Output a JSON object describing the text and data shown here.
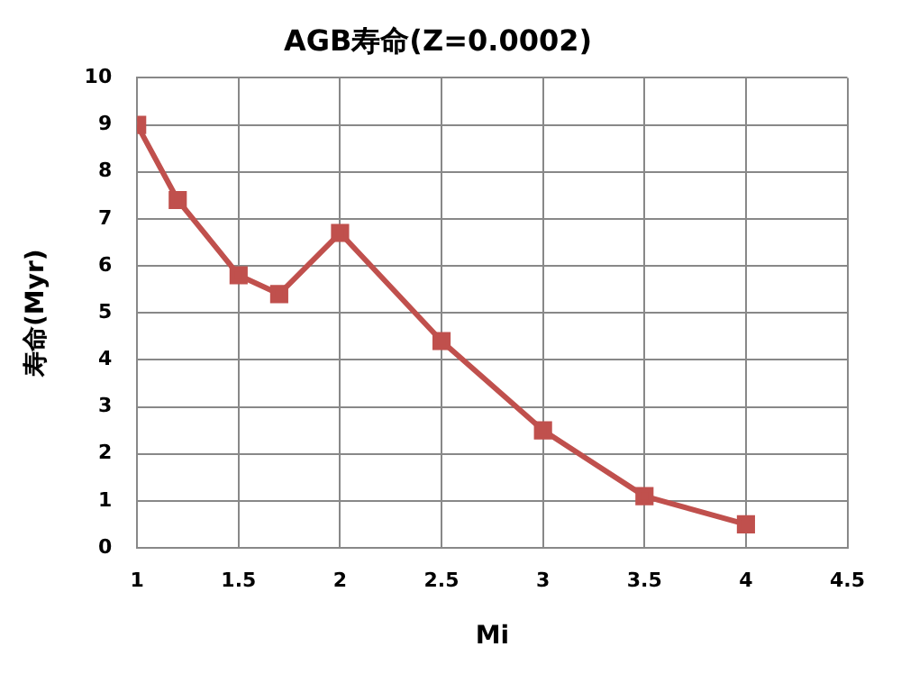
{
  "chart_data": {
    "type": "line",
    "title": "AGB寿命(Z=0.0002)",
    "xlabel": "Mi",
    "ylabel": "寿命(Myr)",
    "x": [
      1,
      1.2,
      1.5,
      1.7,
      2,
      2.5,
      3,
      3.5,
      4
    ],
    "series": [
      {
        "color": "#c0504d",
        "values": [
          9.0,
          7.4,
          5.8,
          5.4,
          6.7,
          4.4,
          2.5,
          1.1,
          0.5
        ]
      }
    ],
    "xlim": [
      1,
      4.5
    ],
    "xticks": [
      1,
      1.5,
      2,
      2.5,
      3,
      3.5,
      4,
      4.5
    ],
    "ylim": [
      0,
      10
    ],
    "yticks": [
      0,
      1,
      2,
      3,
      4,
      5,
      6,
      7,
      8,
      9,
      10
    ],
    "grid": true,
    "legend": false,
    "marker": "square",
    "line_style": "solid"
  }
}
